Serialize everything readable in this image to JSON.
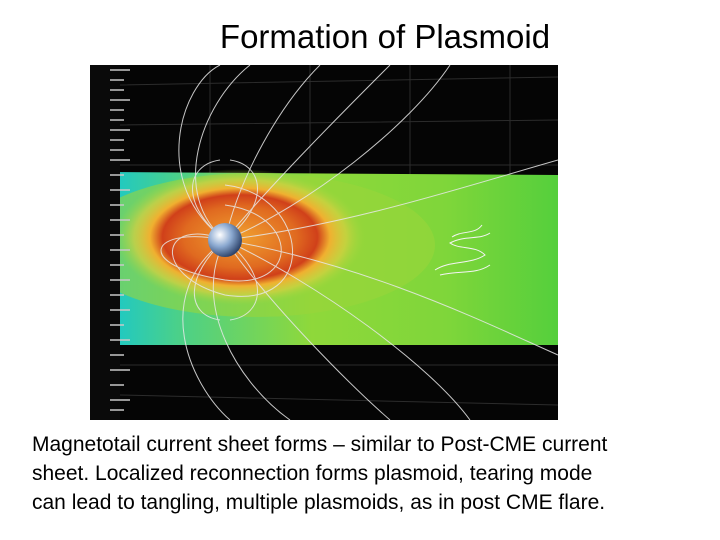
{
  "title": "Formation of Plasmoid",
  "caption": {
    "lines": [
      "Magnetotail current sheet forms – similar to Post-CME current",
      "sheet. Localized reconnection forms plasmoid, tearing mode",
      "can lead to tangling, multiple plasmoids, as in post CME flare."
    ]
  }
}
